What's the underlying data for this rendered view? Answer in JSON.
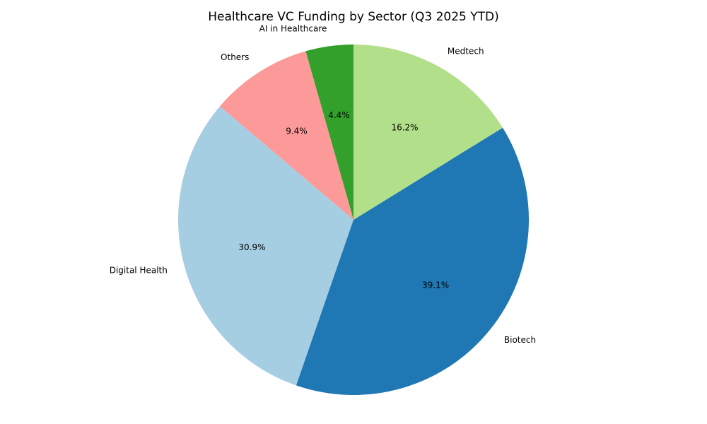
{
  "chart_data": {
    "type": "pie",
    "title": "Healthcare VC Funding by Sector (Q3 2025 YTD)",
    "categories": [
      "AI in Healthcare",
      "Others",
      "Digital Health",
      "Biotech",
      "Medtech"
    ],
    "values": [
      4.4,
      9.4,
      30.9,
      39.1,
      16.2
    ],
    "value_labels": [
      "4.4%",
      "9.4%",
      "30.9%",
      "39.1%",
      "16.2%"
    ],
    "colors": [
      "#33a02c",
      "#fb9a99",
      "#a6cee3",
      "#1f78b4",
      "#b2df8a"
    ]
  }
}
